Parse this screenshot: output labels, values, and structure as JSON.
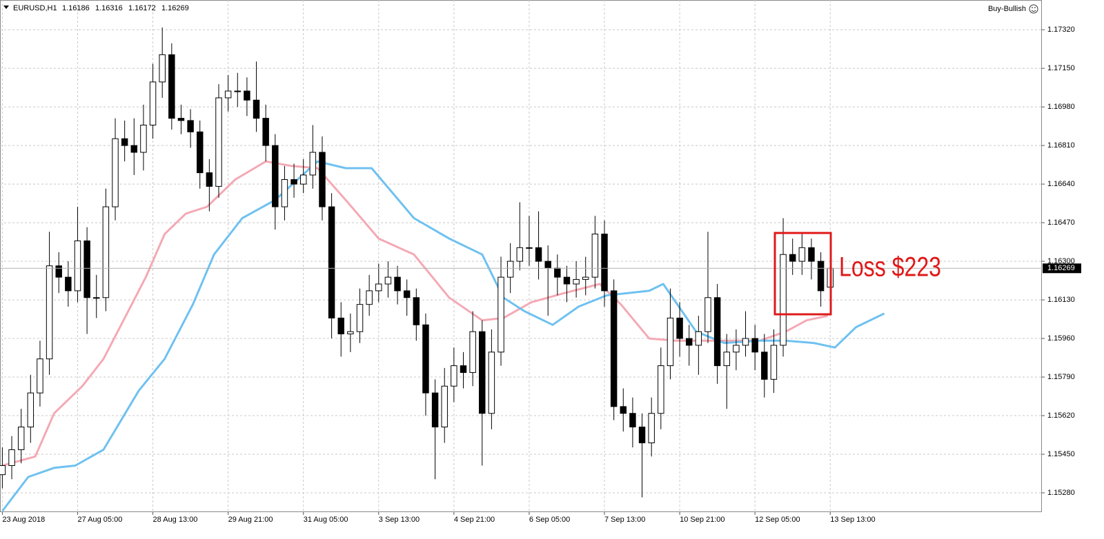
{
  "header": {
    "symbol": "EURUSD,H1",
    "ohlc": [
      1.16186,
      1.16316,
      1.16172,
      1.16269
    ]
  },
  "indicator": "Buy-Bullish",
  "chart_data": {
    "type": "candlestick",
    "x": [
      0,
      4,
      8,
      12,
      16,
      20,
      24,
      28,
      32,
      36,
      40,
      44,
      48,
      52,
      56,
      60,
      64,
      68,
      72,
      76,
      80,
      84,
      88,
      92,
      96,
      100,
      104,
      108,
      112,
      116,
      120,
      124,
      128,
      132,
      136,
      140,
      144,
      148,
      152,
      156,
      160,
      164,
      168,
      172,
      176,
      180,
      184,
      188,
      192,
      196,
      200,
      204,
      208,
      212,
      216,
      220,
      224,
      228,
      232,
      236,
      240,
      244,
      248,
      252,
      256,
      260,
      264,
      268,
      272,
      276,
      280,
      284,
      288,
      292,
      296,
      300,
      304,
      308,
      312,
      316,
      320,
      324,
      328,
      332,
      336,
      340,
      344,
      348,
      352
    ],
    "open": [
      1.1536,
      1.154,
      1.1547,
      1.1557,
      1.1572,
      1.1587,
      1.1628,
      1.1623,
      1.1617,
      1.1639,
      1.1614,
      1.1614,
      1.1654,
      1.1684,
      1.1681,
      1.1678,
      1.169,
      1.1709,
      1.1721,
      1.1693,
      1.1692,
      1.1687,
      1.1669,
      1.1663,
      1.1702,
      1.1705,
      1.1705,
      1.1701,
      1.1693,
      1.1681,
      1.1654,
      1.1666,
      1.1664,
      1.1668,
      1.1678,
      1.1654,
      1.1605,
      1.1598,
      1.1599,
      1.1611,
      1.1617,
      1.162,
      1.1623,
      1.1617,
      1.1614,
      1.1602,
      1.1572,
      1.1557,
      1.1575,
      1.1584,
      1.1581,
      1.1599,
      1.1563,
      1.159,
      1.1623,
      1.163,
      1.1636,
      1.1636,
      1.163,
      1.1627,
      1.1623,
      1.162,
      1.1622,
      1.1623,
      1.1642,
      1.1617,
      1.1566,
      1.1563,
      1.1557,
      1.155,
      1.1563,
      1.1584,
      1.1605,
      1.1596,
      1.1593,
      1.1599,
      1.1614,
      1.1584,
      1.159,
      1.1593,
      1.1596,
      1.159,
      1.1578,
      1.1593,
      1.1633,
      1.163,
      1.1636,
      1.163,
      1.16186
    ],
    "high": [
      1.1548,
      1.1553,
      1.1565,
      1.158,
      1.1595,
      1.1643,
      1.1634,
      1.163,
      1.1654,
      1.1645,
      1.1624,
      1.1662,
      1.1693,
      1.1692,
      1.1693,
      1.1699,
      1.1717,
      1.1733,
      1.1726,
      1.1699,
      1.1697,
      1.1692,
      1.1675,
      1.1708,
      1.1712,
      1.1713,
      1.1711,
      1.1718,
      1.1699,
      1.1686,
      1.1672,
      1.1673,
      1.1675,
      1.169,
      1.1685,
      1.166,
      1.1612,
      1.1607,
      1.1618,
      1.1624,
      1.1629,
      1.163,
      1.1628,
      1.1622,
      1.1618,
      1.1607,
      1.1578,
      1.1583,
      1.1592,
      1.159,
      1.1608,
      1.1604,
      1.16,
      1.1632,
      1.1638,
      1.1656,
      1.165,
      1.1652,
      1.1637,
      1.1633,
      1.1628,
      1.163,
      1.1632,
      1.165,
      1.1648,
      1.1622,
      1.1574,
      1.157,
      1.1563,
      1.157,
      1.1592,
      1.1618,
      1.1612,
      1.1602,
      1.1606,
      1.1643,
      1.162,
      1.1598,
      1.16,
      1.1608,
      1.1602,
      1.1598,
      1.16,
      1.1649,
      1.164,
      1.1642,
      1.164,
      1.1634,
      1.16316
    ],
    "low": [
      1.153,
      1.1534,
      1.1541,
      1.155,
      1.1566,
      1.158,
      1.1616,
      1.161,
      1.1612,
      1.1598,
      1.1605,
      1.1608,
      1.1648,
      1.1674,
      1.1668,
      1.167,
      1.1684,
      1.1702,
      1.1688,
      1.1686,
      1.168,
      1.1662,
      1.1652,
      1.1658,
      1.1696,
      1.1698,
      1.1694,
      1.1687,
      1.1674,
      1.1644,
      1.1648,
      1.1658,
      1.166,
      1.1662,
      1.1648,
      1.1596,
      1.1588,
      1.159,
      1.1594,
      1.1606,
      1.1612,
      1.1614,
      1.1611,
      1.1606,
      1.1595,
      1.1562,
      1.1534,
      1.155,
      1.1568,
      1.1574,
      1.1575,
      1.154,
      1.1556,
      1.1584,
      1.1616,
      1.1626,
      1.1628,
      1.1622,
      1.1606,
      1.1615,
      1.1612,
      1.1614,
      1.1615,
      1.1618,
      1.161,
      1.156,
      1.1555,
      1.1548,
      1.1526,
      1.1544,
      1.1556,
      1.1578,
      1.1588,
      1.1584,
      1.158,
      1.1594,
      1.1576,
      1.1565,
      1.1582,
      1.1588,
      1.1582,
      1.157,
      1.1572,
      1.1588,
      1.1624,
      1.1624,
      1.1622,
      1.161,
      1.16172
    ],
    "close": [
      1.154,
      1.1547,
      1.1557,
      1.1572,
      1.1587,
      1.1628,
      1.1623,
      1.1617,
      1.1639,
      1.1614,
      1.1614,
      1.1654,
      1.1684,
      1.1681,
      1.1678,
      1.169,
      1.1709,
      1.1721,
      1.1693,
      1.1692,
      1.1687,
      1.1669,
      1.1663,
      1.1702,
      1.1705,
      1.1705,
      1.1701,
      1.1693,
      1.1681,
      1.1654,
      1.1666,
      1.1664,
      1.1668,
      1.1678,
      1.1654,
      1.1605,
      1.1598,
      1.1599,
      1.1611,
      1.1617,
      1.162,
      1.1623,
      1.1617,
      1.1614,
      1.1602,
      1.1572,
      1.1557,
      1.1575,
      1.1584,
      1.1581,
      1.1599,
      1.1563,
      1.159,
      1.1623,
      1.163,
      1.1636,
      1.1636,
      1.163,
      1.1627,
      1.1623,
      1.162,
      1.1622,
      1.1623,
      1.1642,
      1.1617,
      1.1566,
      1.1563,
      1.1557,
      1.155,
      1.1563,
      1.1584,
      1.1605,
      1.1596,
      1.1593,
      1.1599,
      1.1614,
      1.1584,
      1.159,
      1.1593,
      1.1596,
      1.159,
      1.1578,
      1.1593,
      1.1633,
      1.163,
      1.1636,
      1.163,
      1.1617,
      1.16269
    ],
    "lines": [
      {
        "color": "#f4a9b4",
        "x": [
          0,
          14,
          22,
          34,
          43,
          52,
          61,
          69,
          78,
          87,
          99,
          112,
          123,
          134,
          146,
          160,
          175,
          190,
          204,
          213,
          225,
          239,
          254,
          263,
          275,
          286,
          304,
          322,
          333,
          342,
          351
        ],
        "values": [
          1.154,
          1.1544,
          1.1563,
          1.1575,
          1.1587,
          1.1605,
          1.1623,
          1.1642,
          1.1651,
          1.1654,
          1.1666,
          1.1674,
          1.1672,
          1.1671,
          1.1657,
          1.164,
          1.1633,
          1.1614,
          1.1604,
          1.1605,
          1.1612,
          1.1616,
          1.162,
          1.1611,
          1.1596,
          1.1595,
          1.1595,
          1.1595,
          1.1599,
          1.1604,
          1.1606
        ]
      },
      {
        "color": "#6ec1f0",
        "x": [
          0,
          11,
          22,
          31,
          43,
          58,
          69,
          81,
          90,
          102,
          116,
          134,
          146,
          157,
          175,
          190,
          204,
          213,
          222,
          234,
          245,
          257,
          275,
          281,
          295,
          307,
          322,
          333,
          345,
          354,
          363,
          375
        ],
        "values": [
          1.152,
          1.1535,
          1.1539,
          1.154,
          1.1547,
          1.1573,
          1.1587,
          1.1611,
          1.1633,
          1.1649,
          1.1657,
          1.1674,
          1.1671,
          1.1671,
          1.1649,
          1.164,
          1.1633,
          1.1614,
          1.1608,
          1.1602,
          1.161,
          1.1615,
          1.1617,
          1.162,
          1.1599,
          1.1594,
          1.1595,
          1.1595,
          1.1594,
          1.1592,
          1.1601,
          1.1607
        ]
      }
    ],
    "xlim": [
      -1,
      442
    ],
    "xticks": [
      {
        "value": 0,
        "label": "23 Aug 2018"
      },
      {
        "value": 32,
        "label": "27 Aug 05:00"
      },
      {
        "value": 64,
        "label": "28 Aug 13:00"
      },
      {
        "value": 96,
        "label": "29 Aug 21:00"
      },
      {
        "value": 128,
        "label": "31 Aug 05:00"
      },
      {
        "value": 160,
        "label": "3 Sep 13:00"
      },
      {
        "value": 192,
        "label": "4 Sep 21:00"
      },
      {
        "value": 224,
        "label": "6 Sep 05:00"
      },
      {
        "value": 256,
        "label": "7 Sep 13:00"
      },
      {
        "value": 288,
        "label": "10 Sep 21:00"
      },
      {
        "value": 320,
        "label": "12 Sep 05:00"
      },
      {
        "value": 352,
        "label": "13 Sep 13:00"
      }
    ],
    "ylim": [
      1.15195,
      1.17451
    ],
    "yticks": [
      {
        "value": 1.1732,
        "label": "1.17320"
      },
      {
        "value": 1.1715,
        "label": "1.17150"
      },
      {
        "value": 1.1698,
        "label": "1.16980"
      },
      {
        "value": 1.1681,
        "label": "1.16810"
      },
      {
        "value": 1.1664,
        "label": "1.16640"
      },
      {
        "value": 1.1647,
        "label": "1.16470"
      },
      {
        "value": 1.163,
        "label": "1.16300"
      },
      {
        "value": 1.1613,
        "label": "1.16130"
      },
      {
        "value": 1.1596,
        "label": "1.15960"
      },
      {
        "value": 1.1579,
        "label": "1.15790"
      },
      {
        "value": 1.1562,
        "label": "1.15620"
      },
      {
        "value": 1.1545,
        "label": "1.15450"
      },
      {
        "value": 1.1528,
        "label": "1.15280"
      }
    ],
    "grid": true,
    "last_price": 1.16269,
    "annotation": "Loss $223"
  }
}
